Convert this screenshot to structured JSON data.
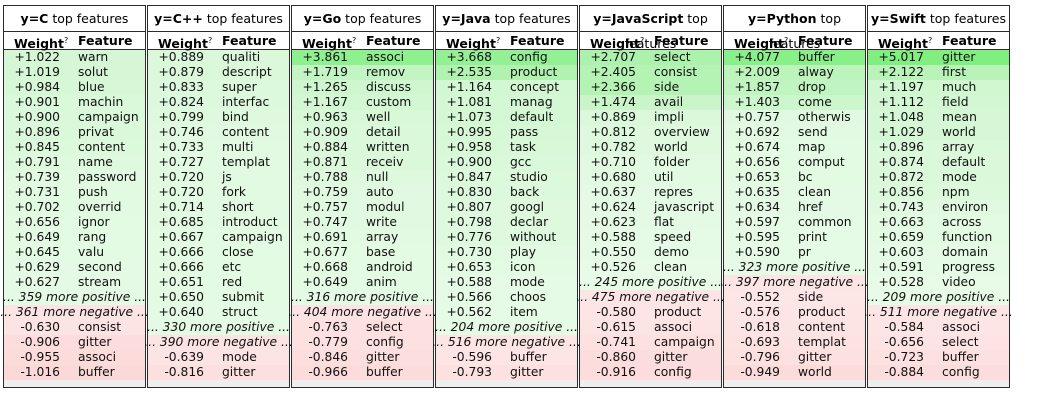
{
  "header": {
    "weight": "Weight",
    "weight_sup": "?",
    "feature": "Feature"
  },
  "tables": [
    {
      "label": "y=C",
      "suffix": "top features",
      "rows": [
        {
          "w": "+1.022",
          "f": "warn",
          "bg": "#d5f7d5"
        },
        {
          "w": "+1.019",
          "f": "solut",
          "bg": "#d5f7d5"
        },
        {
          "w": "+0.984",
          "f": "blue",
          "bg": "#d7f8d7"
        },
        {
          "w": "+0.901",
          "f": "machin",
          "bg": "#daf8da"
        },
        {
          "w": "+0.900",
          "f": "campaign",
          "bg": "#daf8da"
        },
        {
          "w": "+0.896",
          "f": "privat",
          "bg": "#daf8da"
        },
        {
          "w": "+0.845",
          "f": "content",
          "bg": "#dcf9dc"
        },
        {
          "w": "+0.791",
          "f": "name",
          "bg": "#dff9df"
        },
        {
          "w": "+0.739",
          "f": "password",
          "bg": "#e1fae1"
        },
        {
          "w": "+0.731",
          "f": "push",
          "bg": "#e1fae1"
        },
        {
          "w": "+0.702",
          "f": "overrid",
          "bg": "#e2fae2"
        },
        {
          "w": "+0.656",
          "f": "ignor",
          "bg": "#e3fae3"
        },
        {
          "w": "+0.649",
          "f": "rang",
          "bg": "#e3fae3"
        },
        {
          "w": "+0.645",
          "f": "valu",
          "bg": "#e3fae3"
        },
        {
          "w": "+0.629",
          "f": "second",
          "bg": "#e4fae4"
        },
        {
          "w": "+0.627",
          "f": "stream",
          "bg": "#e4fae4"
        },
        {
          "more": "... 359 more positive ...",
          "bg": "#e4fae4"
        },
        {
          "more": "... 361 more negative ...",
          "bg": "#fde4e4"
        },
        {
          "w": "-0.630",
          "f": "consist",
          "bg": "#fde4e4"
        },
        {
          "w": "-0.906",
          "f": "gitter",
          "bg": "#fcdcdc"
        },
        {
          "w": "-0.955",
          "f": "associ",
          "bg": "#fcdbdb"
        },
        {
          "w": "-1.016",
          "f": "buffer",
          "bg": "#fcd9d9"
        }
      ]
    },
    {
      "label": "y=C++",
      "suffix": "top features",
      "rows": [
        {
          "w": "+0.889",
          "f": "qualiti",
          "bg": "#dbf8db"
        },
        {
          "w": "+0.879",
          "f": "descript",
          "bg": "#dbf8db"
        },
        {
          "w": "+0.833",
          "f": "super",
          "bg": "#ddf9dd"
        },
        {
          "w": "+0.824",
          "f": "interfac",
          "bg": "#ddf9dd"
        },
        {
          "w": "+0.799",
          "f": "bind",
          "bg": "#def9de"
        },
        {
          "w": "+0.746",
          "f": "content",
          "bg": "#e0f9e0"
        },
        {
          "w": "+0.733",
          "f": "multi",
          "bg": "#e1fae1"
        },
        {
          "w": "+0.727",
          "f": "templat",
          "bg": "#e1fae1"
        },
        {
          "w": "+0.720",
          "f": "js",
          "bg": "#e1fae1"
        },
        {
          "w": "+0.720",
          "f": "fork",
          "bg": "#e1fae1"
        },
        {
          "w": "+0.714",
          "f": "short",
          "bg": "#e2fae2"
        },
        {
          "w": "+0.685",
          "f": "introduct",
          "bg": "#e2fae2"
        },
        {
          "w": "+0.667",
          "f": "campaign",
          "bg": "#e3fae3"
        },
        {
          "w": "+0.666",
          "f": "close",
          "bg": "#e3fae3"
        },
        {
          "w": "+0.666",
          "f": "etc",
          "bg": "#e3fae3"
        },
        {
          "w": "+0.651",
          "f": "red",
          "bg": "#e3fae3"
        },
        {
          "w": "+0.650",
          "f": "submit",
          "bg": "#e3fae3"
        },
        {
          "w": "+0.640",
          "f": "struct",
          "bg": "#e4fae4"
        },
        {
          "more": "... 330 more positive ...",
          "bg": "#e4fae4"
        },
        {
          "more": "... 390 more negative ...",
          "bg": "#fde4e4"
        },
        {
          "w": "-0.639",
          "f": "mode",
          "bg": "#fde4e4"
        },
        {
          "w": "-0.816",
          "f": "gitter",
          "bg": "#fcdfdf"
        }
      ]
    },
    {
      "label": "y=Go",
      "suffix": "top features",
      "rows": [
        {
          "w": "+3.861",
          "f": "associ",
          "bg": "#8ff08f"
        },
        {
          "w": "+1.719",
          "f": "remov",
          "bg": "#c3f4c3"
        },
        {
          "w": "+1.265",
          "f": "discuss",
          "bg": "#cff6cf"
        },
        {
          "w": "+1.167",
          "f": "custom",
          "bg": "#d2f7d2"
        },
        {
          "w": "+0.963",
          "f": "well",
          "bg": "#d8f8d8"
        },
        {
          "w": "+0.909",
          "f": "detail",
          "bg": "#daf8da"
        },
        {
          "w": "+0.884",
          "f": "written",
          "bg": "#dbf8db"
        },
        {
          "w": "+0.871",
          "f": "receiv",
          "bg": "#dbf8db"
        },
        {
          "w": "+0.788",
          "f": "null",
          "bg": "#dff9df"
        },
        {
          "w": "+0.759",
          "f": "auto",
          "bg": "#e0f9e0"
        },
        {
          "w": "+0.757",
          "f": "modul",
          "bg": "#e0f9e0"
        },
        {
          "w": "+0.747",
          "f": "write",
          "bg": "#e0f9e0"
        },
        {
          "w": "+0.691",
          "f": "array",
          "bg": "#e2fae2"
        },
        {
          "w": "+0.677",
          "f": "base",
          "bg": "#e3fae3"
        },
        {
          "w": "+0.668",
          "f": "android",
          "bg": "#e3fae3"
        },
        {
          "w": "+0.649",
          "f": "anim",
          "bg": "#e3fae3"
        },
        {
          "more": "... 316 more positive ...",
          "bg": "#e4fae4"
        },
        {
          "more": "... 404 more negative ...",
          "bg": "#fde3e3"
        },
        {
          "w": "-0.763",
          "f": "select",
          "bg": "#fde0e0"
        },
        {
          "w": "-0.779",
          "f": "config",
          "bg": "#fde0e0"
        },
        {
          "w": "-0.846",
          "f": "gitter",
          "bg": "#fcdede"
        },
        {
          "w": "-0.966",
          "f": "buffer",
          "bg": "#fcdbdb"
        }
      ]
    },
    {
      "label": "y=Java",
      "suffix": "top features",
      "rows": [
        {
          "w": "+3.668",
          "f": "config",
          "bg": "#94f094"
        },
        {
          "w": "+2.535",
          "f": "product",
          "bg": "#b1f2b1"
        },
        {
          "w": "+1.164",
          "f": "concept",
          "bg": "#d2f7d2"
        },
        {
          "w": "+1.081",
          "f": "manag",
          "bg": "#d4f7d4"
        },
        {
          "w": "+1.073",
          "f": "default",
          "bg": "#d4f7d4"
        },
        {
          "w": "+0.995",
          "f": "pass",
          "bg": "#d7f8d7"
        },
        {
          "w": "+0.958",
          "f": "task",
          "bg": "#d8f8d8"
        },
        {
          "w": "+0.900",
          "f": "gcc",
          "bg": "#daf8da"
        },
        {
          "w": "+0.847",
          "f": "studio",
          "bg": "#dcf9dc"
        },
        {
          "w": "+0.830",
          "f": "back",
          "bg": "#ddf9dd"
        },
        {
          "w": "+0.807",
          "f": "googl",
          "bg": "#def9de"
        },
        {
          "w": "+0.798",
          "f": "declar",
          "bg": "#def9de"
        },
        {
          "w": "+0.776",
          "f": "without",
          "bg": "#dff9df"
        },
        {
          "w": "+0.730",
          "f": "play",
          "bg": "#e1fae1"
        },
        {
          "w": "+0.653",
          "f": "icon",
          "bg": "#e3fae3"
        },
        {
          "w": "+0.588",
          "f": "mode",
          "bg": "#e5fbe5"
        },
        {
          "w": "+0.566",
          "f": "choos",
          "bg": "#e6fbe6"
        },
        {
          "w": "+0.562",
          "f": "item",
          "bg": "#e6fbe6"
        },
        {
          "more": "... 204 more positive ...",
          "bg": "#e6fbe6"
        },
        {
          "more": "... 516 more negative ...",
          "bg": "#fde5e5"
        },
        {
          "w": "-0.596",
          "f": "buffer",
          "bg": "#fde5e5"
        },
        {
          "w": "-0.793",
          "f": "gitter",
          "bg": "#fde0e0"
        }
      ]
    },
    {
      "label": "y=JavaScript",
      "suffix": "top features",
      "rows": [
        {
          "w": "+2.707",
          "f": "select",
          "bg": "#acf2ac"
        },
        {
          "w": "+2.405",
          "f": "consist",
          "bg": "#b4f3b4"
        },
        {
          "w": "+2.366",
          "f": "side",
          "bg": "#b5f3b5"
        },
        {
          "w": "+1.474",
          "f": "avail",
          "bg": "#caf5ca"
        },
        {
          "w": "+0.869",
          "f": "impli",
          "bg": "#dbf8db"
        },
        {
          "w": "+0.812",
          "f": "overview",
          "bg": "#def9de"
        },
        {
          "w": "+0.782",
          "f": "world",
          "bg": "#dff9df"
        },
        {
          "w": "+0.710",
          "f": "folder",
          "bg": "#e1fae1"
        },
        {
          "w": "+0.680",
          "f": "util",
          "bg": "#e2fae2"
        },
        {
          "w": "+0.637",
          "f": "repres",
          "bg": "#e4fae4"
        },
        {
          "w": "+0.624",
          "f": "javascript",
          "bg": "#e4fae4"
        },
        {
          "w": "+0.623",
          "f": "flat",
          "bg": "#e4fae4"
        },
        {
          "w": "+0.588",
          "f": "speed",
          "bg": "#e5fbe5"
        },
        {
          "w": "+0.550",
          "f": "demo",
          "bg": "#e6fbe6"
        },
        {
          "w": "+0.526",
          "f": "clean",
          "bg": "#e7fbe7"
        },
        {
          "more": "... 245 more positive ...",
          "bg": "#e7fbe7"
        },
        {
          "more": "... 475 more negative ...",
          "bg": "#fde5e5"
        },
        {
          "w": "-0.580",
          "f": "product",
          "bg": "#fde5e5"
        },
        {
          "w": "-0.615",
          "f": "associ",
          "bg": "#fde4e4"
        },
        {
          "w": "-0.741",
          "f": "campaign",
          "bg": "#fde1e1"
        },
        {
          "w": "-0.860",
          "f": "gitter",
          "bg": "#fcdddd"
        },
        {
          "w": "-0.916",
          "f": "config",
          "bg": "#fcdcdc"
        }
      ]
    },
    {
      "label": "y=Python",
      "suffix": "top features",
      "rows": [
        {
          "w": "+4.077",
          "f": "buffer",
          "bg": "#89ef89"
        },
        {
          "w": "+2.009",
          "f": "alway",
          "bg": "#bcf4bc"
        },
        {
          "w": "+1.857",
          "f": "drop",
          "bg": "#c0f4c0"
        },
        {
          "w": "+1.403",
          "f": "come",
          "bg": "#ccf6cc"
        },
        {
          "w": "+0.757",
          "f": "otherwis",
          "bg": "#e0f9e0"
        },
        {
          "w": "+0.692",
          "f": "send",
          "bg": "#e2fae2"
        },
        {
          "w": "+0.674",
          "f": "map",
          "bg": "#e3fae3"
        },
        {
          "w": "+0.656",
          "f": "comput",
          "bg": "#e3fae3"
        },
        {
          "w": "+0.653",
          "f": "bc",
          "bg": "#e3fae3"
        },
        {
          "w": "+0.635",
          "f": "clean",
          "bg": "#e4fae4"
        },
        {
          "w": "+0.634",
          "f": "href",
          "bg": "#e4fae4"
        },
        {
          "w": "+0.597",
          "f": "common",
          "bg": "#e5fbe5"
        },
        {
          "w": "+0.595",
          "f": "print",
          "bg": "#e5fbe5"
        },
        {
          "w": "+0.590",
          "f": "pr",
          "bg": "#e5fbe5"
        },
        {
          "more": "... 323 more positive ...",
          "bg": "#e5fbe5"
        },
        {
          "more": "... 397 more negative ...",
          "bg": "#fde5e5"
        },
        {
          "w": "-0.552",
          "f": "side",
          "bg": "#fde6e6"
        },
        {
          "w": "-0.576",
          "f": "product",
          "bg": "#fde5e5"
        },
        {
          "w": "-0.618",
          "f": "content",
          "bg": "#fde4e4"
        },
        {
          "w": "-0.693",
          "f": "templat",
          "bg": "#fde2e2"
        },
        {
          "w": "-0.796",
          "f": "gitter",
          "bg": "#fde0e0"
        },
        {
          "w": "-0.949",
          "f": "world",
          "bg": "#fcdbdb"
        }
      ]
    },
    {
      "label": "y=Swift",
      "suffix": "top features",
      "rows": [
        {
          "w": "+5.017",
          "f": "gitter",
          "bg": "#80ef80"
        },
        {
          "w": "+2.122",
          "f": "first",
          "bg": "#b9f3b9"
        },
        {
          "w": "+1.197",
          "f": "much",
          "bg": "#d1f7d1"
        },
        {
          "w": "+1.112",
          "f": "field",
          "bg": "#d3f7d3"
        },
        {
          "w": "+1.048",
          "f": "mean",
          "bg": "#d5f7d5"
        },
        {
          "w": "+1.029",
          "f": "world",
          "bg": "#d6f7d6"
        },
        {
          "w": "+0.896",
          "f": "array",
          "bg": "#daf8da"
        },
        {
          "w": "+0.874",
          "f": "default",
          "bg": "#dbf8db"
        },
        {
          "w": "+0.872",
          "f": "mode",
          "bg": "#dbf8db"
        },
        {
          "w": "+0.856",
          "f": "npm",
          "bg": "#dcf9dc"
        },
        {
          "w": "+0.743",
          "f": "environ",
          "bg": "#e0f9e0"
        },
        {
          "w": "+0.663",
          "f": "across",
          "bg": "#e3fae3"
        },
        {
          "w": "+0.659",
          "f": "function",
          "bg": "#e3fae3"
        },
        {
          "w": "+0.603",
          "f": "domain",
          "bg": "#e5fbe5"
        },
        {
          "w": "+0.591",
          "f": "progress",
          "bg": "#e5fbe5"
        },
        {
          "w": "+0.528",
          "f": "video",
          "bg": "#e7fbe7"
        },
        {
          "more": "... 209 more positive ...",
          "bg": "#e7fbe7"
        },
        {
          "more": "... 511 more negative ...",
          "bg": "#fde5e5"
        },
        {
          "w": "-0.584",
          "f": "associ",
          "bg": "#fde5e5"
        },
        {
          "w": "-0.656",
          "f": "select",
          "bg": "#fde3e3"
        },
        {
          "w": "-0.723",
          "f": "buffer",
          "bg": "#fde1e1"
        },
        {
          "w": "-0.884",
          "f": "config",
          "bg": "#fcdddd"
        }
      ]
    }
  ]
}
